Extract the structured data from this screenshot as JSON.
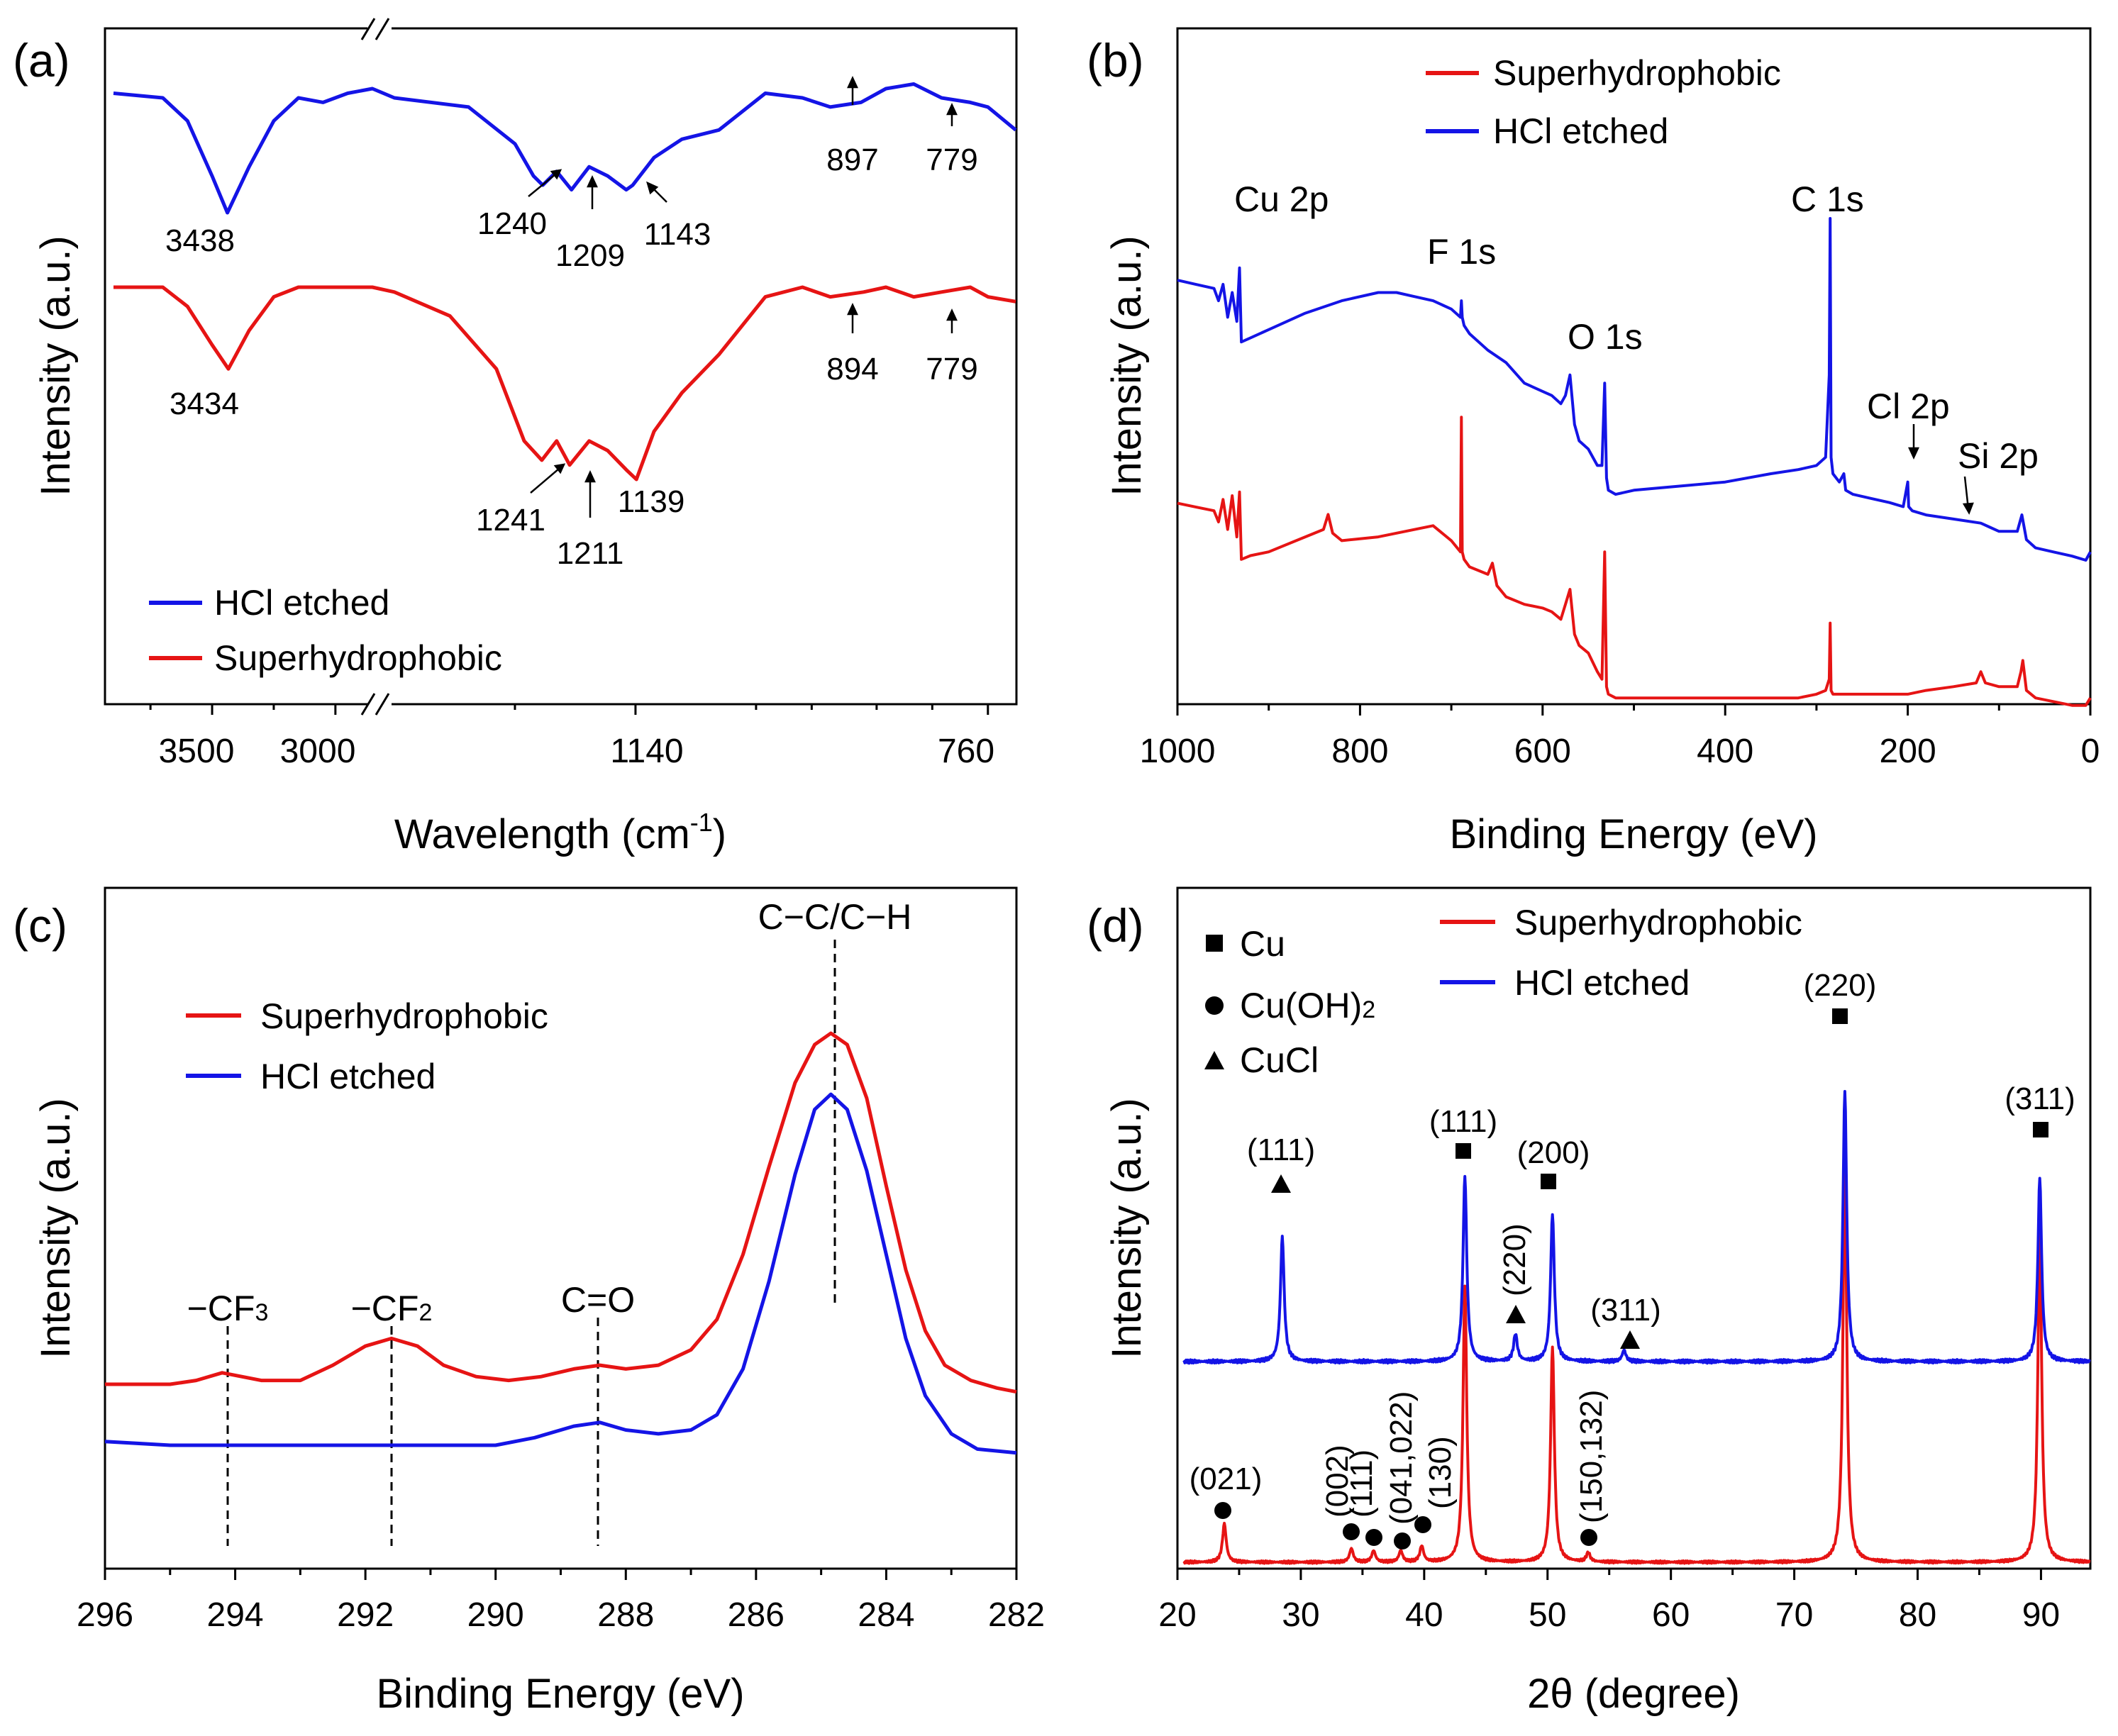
{
  "colors": {
    "blue": "#1414e6",
    "red": "#e61414",
    "axis": "#000000"
  },
  "chart_data": [
    {
      "panel": "(a)",
      "type": "line",
      "xlabel": "Wavelength (cm",
      "xlabel_sup": "-1",
      "xlabel_end": ")",
      "ylabel": "Intensity (a.u.)",
      "xticks": [
        "3500",
        "3000",
        "1140",
        "760"
      ],
      "legend": [
        "HCl etched",
        "Superhydrophobic"
      ],
      "annotations": {
        "blue": [
          "3438",
          "1240",
          "1209",
          "1143",
          "897",
          "779"
        ],
        "red": [
          "3434",
          "1241",
          "1211",
          "1139",
          "894",
          "779"
        ]
      },
      "series": [
        {
          "name": "HCl etched",
          "x": [
            3900,
            3700,
            3600,
            3500,
            3438,
            3350,
            3250,
            3150,
            3050,
            2950,
            2850,
            1400,
            1320,
            1270,
            1250,
            1240,
            1225,
            1209,
            1190,
            1170,
            1150,
            1143,
            1120,
            1090,
            1050,
            1000,
            960,
            930,
            897,
            870,
            840,
            810,
            779,
            760,
            730
          ],
          "y": [
            0.96,
            0.95,
            0.9,
            0.78,
            0.7,
            0.8,
            0.9,
            0.95,
            0.94,
            0.96,
            0.97,
            0.95,
            0.93,
            0.85,
            0.78,
            0.76,
            0.79,
            0.75,
            0.8,
            0.78,
            0.75,
            0.76,
            0.82,
            0.86,
            0.88,
            0.96,
            0.95,
            0.93,
            0.94,
            0.97,
            0.98,
            0.95,
            0.94,
            0.93,
            0.88
          ]
        },
        {
          "name": "Superhydrophobic",
          "x": [
            3900,
            3700,
            3600,
            3500,
            3434,
            3350,
            3250,
            3150,
            3050,
            2950,
            2850,
            1400,
            1340,
            1290,
            1260,
            1241,
            1225,
            1211,
            1190,
            1170,
            1150,
            1139,
            1120,
            1090,
            1050,
            1000,
            960,
            930,
            894,
            870,
            840,
            810,
            779,
            760,
            730
          ],
          "y": [
            0.72,
            0.72,
            0.68,
            0.6,
            0.55,
            0.63,
            0.7,
            0.72,
            0.72,
            0.72,
            0.72,
            0.71,
            0.66,
            0.55,
            0.4,
            0.36,
            0.4,
            0.35,
            0.4,
            0.38,
            0.34,
            0.32,
            0.42,
            0.5,
            0.58,
            0.7,
            0.72,
            0.7,
            0.71,
            0.72,
            0.7,
            0.71,
            0.72,
            0.7,
            0.69
          ]
        }
      ]
    },
    {
      "panel": "(b)",
      "type": "line",
      "xlabel": "Binding Energy (eV)",
      "ylabel": "Intensity (a.u.)",
      "xlim": [
        1000,
        0
      ],
      "xticks": [
        "1000",
        "800",
        "600",
        "400",
        "200",
        "0"
      ],
      "legend": [
        "Superhydrophobic",
        "HCl etched"
      ],
      "peak_labels": [
        "Cu 2p",
        "F 1s",
        "O 1s",
        "C 1s",
        "Cl 2p",
        "Si 2p"
      ],
      "series": [
        {
          "name": "HCl etched",
          "x": [
            1000,
            980,
            960,
            955,
            950,
            945,
            940,
            935,
            932,
            930,
            920,
            900,
            860,
            820,
            780,
            760,
            740,
            720,
            700,
            690,
            689,
            688,
            686,
            680,
            660,
            640,
            620,
            600,
            590,
            580,
            575,
            570,
            565,
            560,
            550,
            540,
            535,
            532,
            530,
            528,
            520,
            500,
            450,
            400,
            350,
            320,
            300,
            290,
            286,
            285,
            284,
            282,
            275,
            270,
            268,
            260,
            240,
            220,
            205,
            200,
            199,
            195,
            180,
            150,
            120,
            110,
            100,
            80,
            75,
            70,
            60,
            40,
            20,
            5,
            0
          ],
          "y": [
            0.85,
            0.84,
            0.83,
            0.8,
            0.84,
            0.76,
            0.82,
            0.75,
            0.88,
            0.7,
            0.71,
            0.73,
            0.77,
            0.8,
            0.82,
            0.82,
            0.81,
            0.8,
            0.78,
            0.76,
            0.8,
            0.76,
            0.74,
            0.72,
            0.68,
            0.65,
            0.6,
            0.58,
            0.57,
            0.55,
            0.57,
            0.62,
            0.5,
            0.46,
            0.44,
            0.4,
            0.4,
            0.6,
            0.37,
            0.34,
            0.33,
            0.34,
            0.35,
            0.36,
            0.38,
            0.39,
            0.4,
            0.42,
            0.62,
            1.0,
            0.42,
            0.38,
            0.36,
            0.38,
            0.34,
            0.33,
            0.32,
            0.31,
            0.3,
            0.36,
            0.3,
            0.29,
            0.28,
            0.27,
            0.26,
            0.25,
            0.24,
            0.24,
            0.28,
            0.22,
            0.2,
            0.19,
            0.18,
            0.17,
            0.19
          ]
        },
        {
          "name": "Superhydrophobic",
          "x": [
            1000,
            980,
            960,
            955,
            950,
            945,
            940,
            935,
            932,
            930,
            920,
            900,
            860,
            840,
            835,
            830,
            820,
            780,
            760,
            740,
            720,
            700,
            690,
            689,
            688,
            686,
            680,
            660,
            655,
            650,
            640,
            620,
            600,
            590,
            580,
            575,
            570,
            565,
            560,
            550,
            540,
            535,
            532,
            530,
            528,
            520,
            500,
            450,
            400,
            350,
            320,
            300,
            290,
            286,
            285,
            284,
            282,
            275,
            260,
            240,
            220,
            200,
            180,
            150,
            125,
            120,
            115,
            100,
            80,
            76,
            74,
            70,
            60,
            40,
            20,
            5,
            0
          ],
          "y": [
            0.55,
            0.54,
            0.53,
            0.5,
            0.56,
            0.48,
            0.57,
            0.46,
            0.58,
            0.4,
            0.41,
            0.42,
            0.46,
            0.48,
            0.52,
            0.47,
            0.45,
            0.46,
            0.47,
            0.48,
            0.49,
            0.45,
            0.42,
            0.78,
            0.42,
            0.4,
            0.38,
            0.36,
            0.39,
            0.33,
            0.3,
            0.28,
            0.27,
            0.26,
            0.24,
            0.28,
            0.32,
            0.2,
            0.17,
            0.15,
            0.1,
            0.08,
            0.42,
            0.06,
            0.04,
            0.03,
            0.03,
            0.03,
            0.03,
            0.03,
            0.03,
            0.04,
            0.05,
            0.08,
            0.23,
            0.05,
            0.04,
            0.04,
            0.04,
            0.04,
            0.04,
            0.04,
            0.05,
            0.06,
            0.07,
            0.1,
            0.07,
            0.06,
            0.06,
            0.1,
            0.13,
            0.05,
            0.03,
            0.02,
            0.01,
            0.01,
            0.03
          ]
        }
      ]
    },
    {
      "panel": "(c)",
      "type": "line",
      "xlabel": "Binding Energy (eV)",
      "ylabel": "Intensity (a.u.)",
      "xlim": [
        296,
        282
      ],
      "xticks": [
        "296",
        "294",
        "292",
        "290",
        "288",
        "286",
        "284",
        "282"
      ],
      "legend": [
        "Superhydrophobic",
        "HCl etched"
      ],
      "peak_labels": [
        "C−C/C−H",
        "C=O",
        "−CF",
        "−CF"
      ],
      "peak_label_subs": [
        "3",
        "2"
      ],
      "series": [
        {
          "name": "Superhydrophobic",
          "x": [
            296,
            295,
            294.6,
            294.2,
            293.6,
            293,
            292.5,
            292,
            291.6,
            291.2,
            290.8,
            290.3,
            289.8,
            289.3,
            288.8,
            288.4,
            288,
            287.5,
            287,
            286.6,
            286.2,
            285.8,
            285.4,
            285.1,
            284.85,
            284.6,
            284.3,
            284,
            283.7,
            283.4,
            283.1,
            282.7,
            282.3,
            282
          ],
          "y": [
            0.08,
            0.08,
            0.09,
            0.11,
            0.09,
            0.09,
            0.13,
            0.18,
            0.2,
            0.18,
            0.13,
            0.1,
            0.09,
            0.1,
            0.12,
            0.13,
            0.12,
            0.13,
            0.17,
            0.25,
            0.42,
            0.65,
            0.87,
            0.97,
            1.0,
            0.97,
            0.83,
            0.6,
            0.38,
            0.22,
            0.13,
            0.09,
            0.07,
            0.06
          ]
        },
        {
          "name": "HCl etched",
          "x": [
            296,
            295,
            294,
            293,
            292,
            291,
            290,
            289.4,
            288.8,
            288.4,
            288,
            287.5,
            287,
            286.6,
            286.2,
            285.8,
            285.4,
            285.1,
            284.85,
            284.6,
            284.3,
            284,
            283.7,
            283.4,
            283,
            282.6,
            282
          ],
          "y": [
            -0.07,
            -0.08,
            -0.08,
            -0.08,
            -0.08,
            -0.08,
            -0.08,
            -0.06,
            -0.03,
            -0.02,
            -0.04,
            -0.05,
            -0.04,
            0.0,
            0.12,
            0.35,
            0.63,
            0.8,
            0.84,
            0.8,
            0.64,
            0.42,
            0.2,
            0.05,
            -0.05,
            -0.09,
            -0.1
          ]
        }
      ]
    },
    {
      "panel": "(d)",
      "type": "line",
      "xlabel": "2θ (degree)",
      "ylabel": "Intensity (a.u.)",
      "xlim": [
        20,
        94
      ],
      "xticks": [
        "20",
        "30",
        "40",
        "50",
        "60",
        "70",
        "80",
        "90"
      ],
      "legend": [
        "Superhydrophobic",
        "HCl etched"
      ],
      "marker_legend": [
        "Cu",
        "Cu(OH)",
        "CuCl"
      ],
      "marker_legend_sub": "2",
      "peak_labels": {
        "Cu": [
          "(111)",
          "(200)",
          "(220)",
          "(311)"
        ],
        "CuCl": [
          "(111)",
          "(220)",
          "(311)"
        ],
        "CuOH2": [
          "(021)",
          "(002)",
          "(111)",
          "(041,022)",
          "(130)",
          "(150,132)"
        ]
      },
      "series": [
        {
          "name": "HCl etched",
          "peaks": [
            {
              "x": 28.5,
              "h": 0.55
            },
            {
              "x": 43.3,
              "h": 0.82
            },
            {
              "x": 47.4,
              "h": 0.12
            },
            {
              "x": 50.4,
              "h": 0.65
            },
            {
              "x": 56.2,
              "h": 0.05
            },
            {
              "x": 74.1,
              "h": 1.19
            },
            {
              "x": 89.9,
              "h": 0.81
            }
          ]
        },
        {
          "name": "Superhydrophobic",
          "peaks": [
            {
              "x": 23.8,
              "h": 0.17
            },
            {
              "x": 34.1,
              "h": 0.06
            },
            {
              "x": 35.9,
              "h": 0.05
            },
            {
              "x": 38.1,
              "h": 0.05
            },
            {
              "x": 39.8,
              "h": 0.07
            },
            {
              "x": 43.3,
              "h": 1.22
            },
            {
              "x": 50.4,
              "h": 0.95
            },
            {
              "x": 53.3,
              "h": 0.04
            },
            {
              "x": 74.1,
              "h": 1.8
            },
            {
              "x": 89.9,
              "h": 1.5
            }
          ]
        }
      ]
    }
  ]
}
